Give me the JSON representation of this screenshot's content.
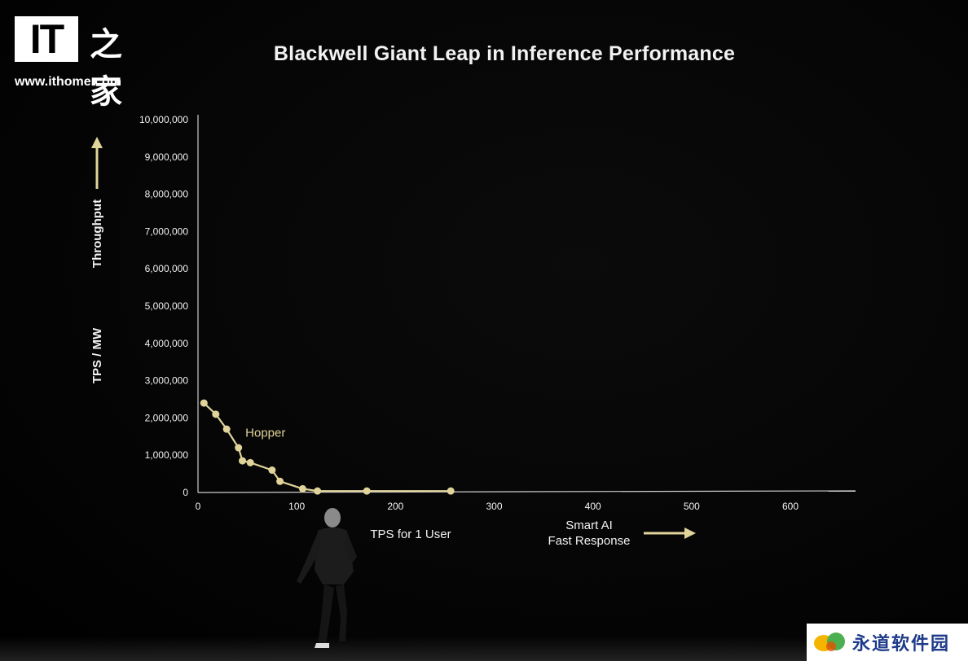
{
  "header": {
    "title": "Blackwell Giant Leap in Inference Performance"
  },
  "logo": {
    "it_text": "IT",
    "cn_text": "之家",
    "url": "www.ithome.com"
  },
  "watermark": {
    "text": "永道软件园"
  },
  "colors": {
    "series": "#e0d49a",
    "axis": "#cfcfcf",
    "text": "#f2f2f2"
  },
  "chart_data": {
    "type": "line",
    "title": "Blackwell Giant Leap in Inference Performance",
    "ylabel_top": "Throughput",
    "ylabel_bottom": "TPS / MW",
    "xlabel": "TPS for 1 User",
    "x_annotation": [
      "Smart AI",
      "Fast Response"
    ],
    "xlim": [
      0,
      650
    ],
    "ylim": [
      0,
      10000000
    ],
    "x_ticks": [
      0,
      100,
      200,
      300,
      400,
      500,
      600
    ],
    "x_tick_labels": [
      "0",
      "100",
      "200",
      "300",
      "400",
      "500",
      "600"
    ],
    "y_ticks": [
      0,
      1000000,
      2000000,
      3000000,
      4000000,
      5000000,
      6000000,
      7000000,
      8000000,
      9000000,
      10000000
    ],
    "y_tick_labels": [
      "0",
      "1,000,000",
      "2,000,000",
      "3,000,000",
      "4,000,000",
      "5,000,000",
      "6,000,000",
      "7,000,000",
      "8,000,000",
      "9,000,000",
      "10,000,000"
    ],
    "grid": false,
    "series": [
      {
        "name": "Hopper",
        "x": [
          6,
          18,
          29,
          41,
          45,
          53,
          75,
          83,
          106,
          121,
          171,
          256
        ],
        "y": [
          2400000,
          2100000,
          1700000,
          1200000,
          850000,
          800000,
          600000,
          300000,
          100000,
          40000,
          40000,
          40000
        ]
      }
    ]
  }
}
